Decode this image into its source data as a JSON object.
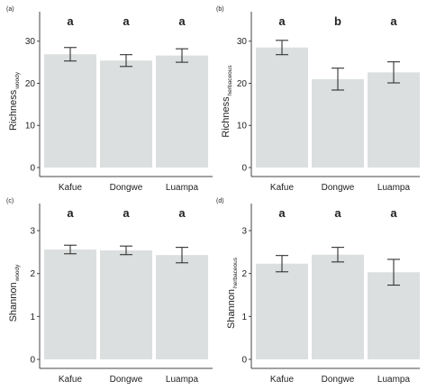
{
  "colors": {
    "bar": "#dcdfdf",
    "axis": "#444444",
    "errorbar": "#333333",
    "text": "#222222"
  },
  "chart_data": [
    {
      "type": "bar",
      "panel_label": "(a)",
      "ylabel": "Richness",
      "ylabel_sub": "woody",
      "categories": [
        "Kafue",
        "Dongwe",
        "Luampa"
      ],
      "values": [
        26.9,
        25.4,
        26.6
      ],
      "errors": [
        1.6,
        1.4,
        1.6
      ],
      "significance": [
        "a",
        "a",
        "a"
      ],
      "yticks": [
        0,
        10,
        20,
        30
      ],
      "ylim": [
        0,
        37
      ]
    },
    {
      "type": "bar",
      "panel_label": "(b)",
      "ylabel": "Richness",
      "ylabel_sub": "herbaceous",
      "categories": [
        "Kafue",
        "Dongwe",
        "Luampa"
      ],
      "values": [
        28.5,
        21.0,
        22.6
      ],
      "errors": [
        1.7,
        2.6,
        2.5
      ],
      "significance": [
        "a",
        "b",
        "a"
      ],
      "yticks": [
        0,
        10,
        20,
        30
      ],
      "ylim": [
        0,
        37
      ]
    },
    {
      "type": "bar",
      "panel_label": "(c)",
      "ylabel": "Shannon",
      "ylabel_sub": "woody",
      "categories": [
        "Kafue",
        "Dongwe",
        "Luampa"
      ],
      "values": [
        2.56,
        2.54,
        2.43
      ],
      "errors": [
        0.1,
        0.1,
        0.18
      ],
      "significance": [
        "a",
        "a",
        "a"
      ],
      "yticks": [
        0,
        1,
        2,
        3
      ],
      "ylim": [
        0,
        3.63
      ]
    },
    {
      "type": "bar",
      "panel_label": "(d)",
      "ylabel": "Shannon",
      "ylabel_sub": "herbaceous",
      "categories": [
        "Kafue",
        "Dongwe",
        "Luampa"
      ],
      "values": [
        2.23,
        2.44,
        2.03
      ],
      "errors": [
        0.19,
        0.17,
        0.3
      ],
      "significance": [
        "a",
        "a",
        "a"
      ],
      "yticks": [
        0,
        1,
        2,
        3
      ],
      "ylim": [
        0,
        3.63
      ]
    }
  ]
}
